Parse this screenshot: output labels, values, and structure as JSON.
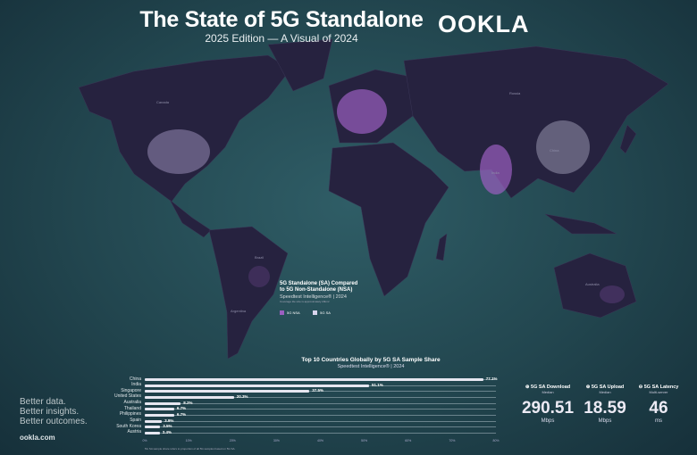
{
  "header": {
    "title": "The State of 5G Standalone",
    "subtitle": "2025 Edition — A Visual of 2024",
    "logo": "OOKLA"
  },
  "map": {
    "labels": [
      "Canada",
      "Russia",
      "China",
      "Brazil",
      "Australia",
      "India",
      "Argentina"
    ],
    "legend": {
      "title_line1": "5G Standalone (SA) Compared",
      "title_line2": "to 5G Non-Standalone (NSA)",
      "source": "Speedtest Intelligence® | 2024",
      "note": "Coverage tile size is approximately 20km²",
      "items": [
        {
          "label": "5G NSA",
          "color": "#9b5fc0"
        },
        {
          "label": "5G SA",
          "color": "#d8d4ec"
        }
      ]
    }
  },
  "chart_data": {
    "type": "bar",
    "orientation": "horizontal",
    "title": "Top 10 Countries Globally by 5G SA Sample Share",
    "subtitle": "Speedtest Intelligence® | 2024",
    "categories": [
      "China",
      "India",
      "Singapore",
      "United States",
      "Australia",
      "Thailand",
      "Philippines",
      "Spain",
      "South Korea",
      "Austria"
    ],
    "values": [
      77.1,
      51.1,
      37.5,
      20.3,
      8.2,
      6.7,
      6.7,
      3.9,
      3.5,
      3.4
    ],
    "value_labels": [
      "77.1%",
      "51.1%",
      "37.5%",
      "20.3%",
      "8.2%",
      "6.7%",
      "6.7%",
      "3.9%",
      "3.5%",
      "3.4%"
    ],
    "xlim": [
      0,
      80
    ],
    "xticks": [
      "0%",
      "10%",
      "20%",
      "30%",
      "40%",
      "50%",
      "60%",
      "70%",
      "80%"
    ],
    "footnote": "5G SA sample share refers to proportion of all 5G samples based on 5G SA."
  },
  "tagline": [
    "Better data.",
    "Better insights.",
    "Better outcomes."
  ],
  "site": "ookla.com",
  "stats": [
    {
      "label": "5G SA Download",
      "sub": "Median",
      "value": "290.51",
      "unit": "Mbps",
      "icon": "download-icon"
    },
    {
      "label": "5G SA Upload",
      "sub": "Median",
      "value": "18.59",
      "unit": "Mbps",
      "icon": "upload-icon"
    },
    {
      "label": "5G SA Latency",
      "sub": "Multi-server",
      "value": "46",
      "unit": "ms",
      "icon": "latency-icon"
    }
  ]
}
